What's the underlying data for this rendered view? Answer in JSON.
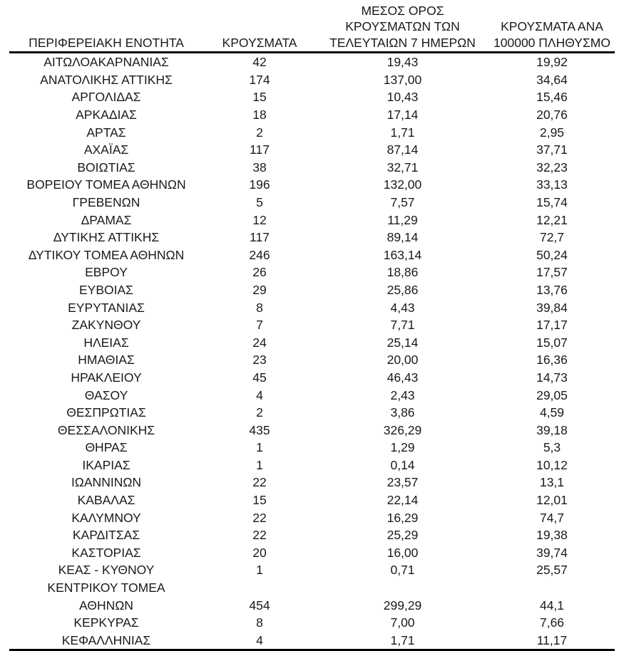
{
  "table": {
    "headers": {
      "region": "ΠΕΡΙΦΕΡΕΙΑΚΗ ΕΝΟΤΗΤΑ",
      "cases": "ΚΡΟΥΣΜΑΤΑ",
      "avg7_lines": [
        "ΜΕΣΟΣ ΟΡΟΣ",
        "ΚΡΟΥΣΜΑΤΩΝ ΤΩΝ",
        "ΤΕΛΕΥΤΑΙΩΝ 7 ΗΜΕΡΩΝ"
      ],
      "per100k_lines": [
        "ΚΡΟΥΣΜΑΤΑ ΑΝΑ",
        "100000 ΠΛΗΘΥΣΜΟ"
      ]
    },
    "rows": [
      {
        "name_lines": [
          "ΑΙΤΩΛΟΑΚΑΡΝΑΝΙΑΣ"
        ],
        "cases": "42",
        "avg7": "19,43",
        "per100k": "19,92"
      },
      {
        "name_lines": [
          "ΑΝΑΤΟΛΙΚΗΣ ΑΤΤΙΚΗΣ"
        ],
        "cases": "174",
        "avg7": "137,00",
        "per100k": "34,64"
      },
      {
        "name_lines": [
          "ΑΡΓΟΛΙΔΑΣ"
        ],
        "cases": "15",
        "avg7": "10,43",
        "per100k": "15,46"
      },
      {
        "name_lines": [
          "ΑΡΚΑΔΙΑΣ"
        ],
        "cases": "18",
        "avg7": "17,14",
        "per100k": "20,76"
      },
      {
        "name_lines": [
          "ΑΡΤΑΣ"
        ],
        "cases": "2",
        "avg7": "1,71",
        "per100k": "2,95"
      },
      {
        "name_lines": [
          "ΑΧΑΪΑΣ"
        ],
        "cases": "117",
        "avg7": "87,14",
        "per100k": "37,71"
      },
      {
        "name_lines": [
          "ΒΟΙΩΤΙΑΣ"
        ],
        "cases": "38",
        "avg7": "32,71",
        "per100k": "32,23"
      },
      {
        "name_lines": [
          "ΒΟΡΕΙΟΥ ΤΟΜΕΑ ΑΘΗΝΩΝ"
        ],
        "cases": "196",
        "avg7": "132,00",
        "per100k": "33,13"
      },
      {
        "name_lines": [
          "ΓΡΕΒΕΝΩΝ"
        ],
        "cases": "5",
        "avg7": "7,57",
        "per100k": "15,74"
      },
      {
        "name_lines": [
          "ΔΡΑΜΑΣ"
        ],
        "cases": "12",
        "avg7": "11,29",
        "per100k": "12,21"
      },
      {
        "name_lines": [
          "ΔΥΤΙΚΗΣ ΑΤΤΙΚΗΣ"
        ],
        "cases": "117",
        "avg7": "89,14",
        "per100k": "72,7"
      },
      {
        "name_lines": [
          "ΔΥΤΙΚΟΥ ΤΟΜΕΑ ΑΘΗΝΩΝ"
        ],
        "cases": "246",
        "avg7": "163,14",
        "per100k": "50,24"
      },
      {
        "name_lines": [
          "ΕΒΡΟΥ"
        ],
        "cases": "26",
        "avg7": "18,86",
        "per100k": "17,57"
      },
      {
        "name_lines": [
          "ΕΥΒΟΙΑΣ"
        ],
        "cases": "29",
        "avg7": "25,86",
        "per100k": "13,76"
      },
      {
        "name_lines": [
          "ΕΥΡΥΤΑΝΙΑΣ"
        ],
        "cases": "8",
        "avg7": "4,43",
        "per100k": "39,84"
      },
      {
        "name_lines": [
          "ΖΑΚΥΝΘΟΥ"
        ],
        "cases": "7",
        "avg7": "7,71",
        "per100k": "17,17"
      },
      {
        "name_lines": [
          "ΗΛΕΙΑΣ"
        ],
        "cases": "24",
        "avg7": "25,14",
        "per100k": "15,07"
      },
      {
        "name_lines": [
          "ΗΜΑΘΙΑΣ"
        ],
        "cases": "23",
        "avg7": "20,00",
        "per100k": "16,36"
      },
      {
        "name_lines": [
          "ΗΡΑΚΛΕΙΟΥ"
        ],
        "cases": "45",
        "avg7": "46,43",
        "per100k": "14,73"
      },
      {
        "name_lines": [
          "ΘΑΣΟΥ"
        ],
        "cases": "4",
        "avg7": "2,43",
        "per100k": "29,05"
      },
      {
        "name_lines": [
          "ΘΕΣΠΡΩΤΙΑΣ"
        ],
        "cases": "2",
        "avg7": "3,86",
        "per100k": "4,59"
      },
      {
        "name_lines": [
          "ΘΕΣΣΑΛΟΝΙΚΗΣ"
        ],
        "cases": "435",
        "avg7": "326,29",
        "per100k": "39,18"
      },
      {
        "name_lines": [
          "ΘΗΡΑΣ"
        ],
        "cases": "1",
        "avg7": "1,29",
        "per100k": "5,3"
      },
      {
        "name_lines": [
          "ΙΚΑΡΙΑΣ"
        ],
        "cases": "1",
        "avg7": "0,14",
        "per100k": "10,12"
      },
      {
        "name_lines": [
          "ΙΩΑΝΝΙΝΩΝ"
        ],
        "cases": "22",
        "avg7": "23,57",
        "per100k": "13,1"
      },
      {
        "name_lines": [
          "ΚΑΒΑΛΑΣ"
        ],
        "cases": "15",
        "avg7": "22,14",
        "per100k": "12,01"
      },
      {
        "name_lines": [
          "ΚΑΛΥΜΝΟΥ"
        ],
        "cases": "22",
        "avg7": "16,29",
        "per100k": "74,7"
      },
      {
        "name_lines": [
          "ΚΑΡΔΙΤΣΑΣ"
        ],
        "cases": "22",
        "avg7": "25,29",
        "per100k": "19,38"
      },
      {
        "name_lines": [
          "ΚΑΣΤΟΡΙΑΣ"
        ],
        "cases": "20",
        "avg7": "16,00",
        "per100k": "39,74"
      },
      {
        "name_lines": [
          "ΚΕΑΣ - ΚΥΘΝΟΥ"
        ],
        "cases": "1",
        "avg7": "0,71",
        "per100k": "25,57"
      },
      {
        "name_lines": [
          "ΚΕΝΤΡΙΚΟΥ ΤΟΜΕΑ",
          "ΑΘΗΝΩΝ"
        ],
        "cases": "454",
        "avg7": "299,29",
        "per100k": "44,1"
      },
      {
        "name_lines": [
          "ΚΕΡΚΥΡΑΣ"
        ],
        "cases": "8",
        "avg7": "7,00",
        "per100k": "7,66"
      },
      {
        "name_lines": [
          "ΚΕΦΑΛΛΗΝΙΑΣ"
        ],
        "cases": "4",
        "avg7": "1,71",
        "per100k": "11,17"
      }
    ]
  }
}
